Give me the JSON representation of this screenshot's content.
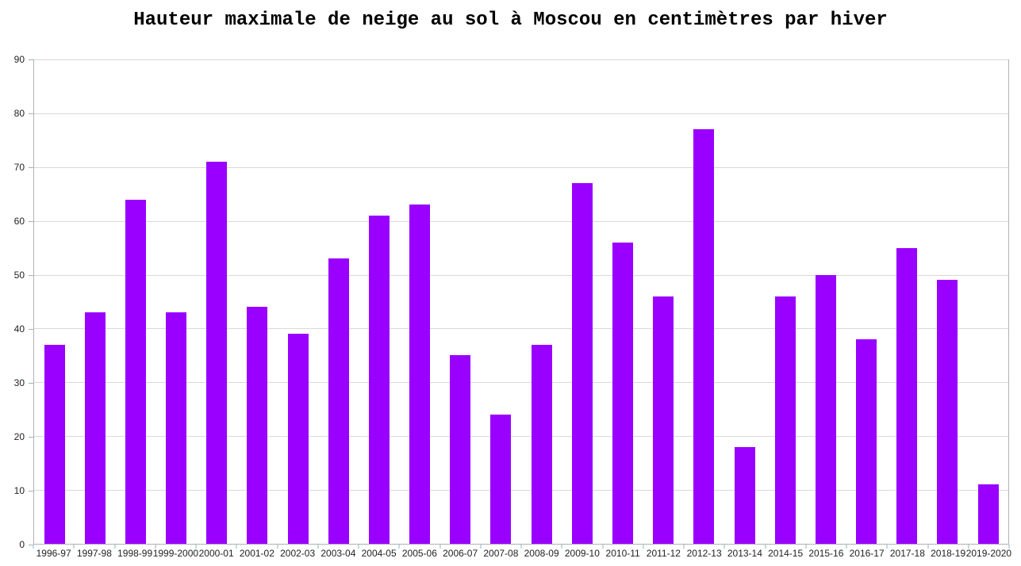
{
  "chart_data": {
    "type": "bar",
    "title": "Hauteur maximale de neige au sol à Moscou en centimètres par hiver",
    "categories": [
      "1996-97",
      "1997-98",
      "1998-99",
      "1999-2000",
      "2000-01",
      "2001-02",
      "2002-03",
      "2003-04",
      "2004-05",
      "2005-06",
      "2006-07",
      "2007-08",
      "2008-09",
      "2009-10",
      "2010-11",
      "2011-12",
      "2012-13",
      "2013-14",
      "2014-15",
      "2015-16",
      "2016-17",
      "2017-18",
      "2018-19",
      "2019-2020"
    ],
    "values": [
      37,
      43,
      64,
      43,
      71,
      44,
      39,
      53,
      61,
      63,
      35,
      24,
      37,
      67,
      56,
      46,
      77,
      18,
      46,
      50,
      38,
      55,
      49,
      11
    ],
    "xlabel": "",
    "ylabel": "",
    "ylim": [
      0,
      90
    ],
    "yticks": [
      0,
      10,
      20,
      30,
      40,
      50,
      60,
      70,
      80,
      90
    ],
    "grid": "horizontal",
    "legend": "none",
    "colors": {
      "bar": "#9900ff",
      "gridline": "#d9d9d9",
      "axis": "#b3b3b3",
      "tick": "#8fb4d1",
      "label": "#222222",
      "title": "#000000",
      "background": "#ffffff"
    }
  }
}
